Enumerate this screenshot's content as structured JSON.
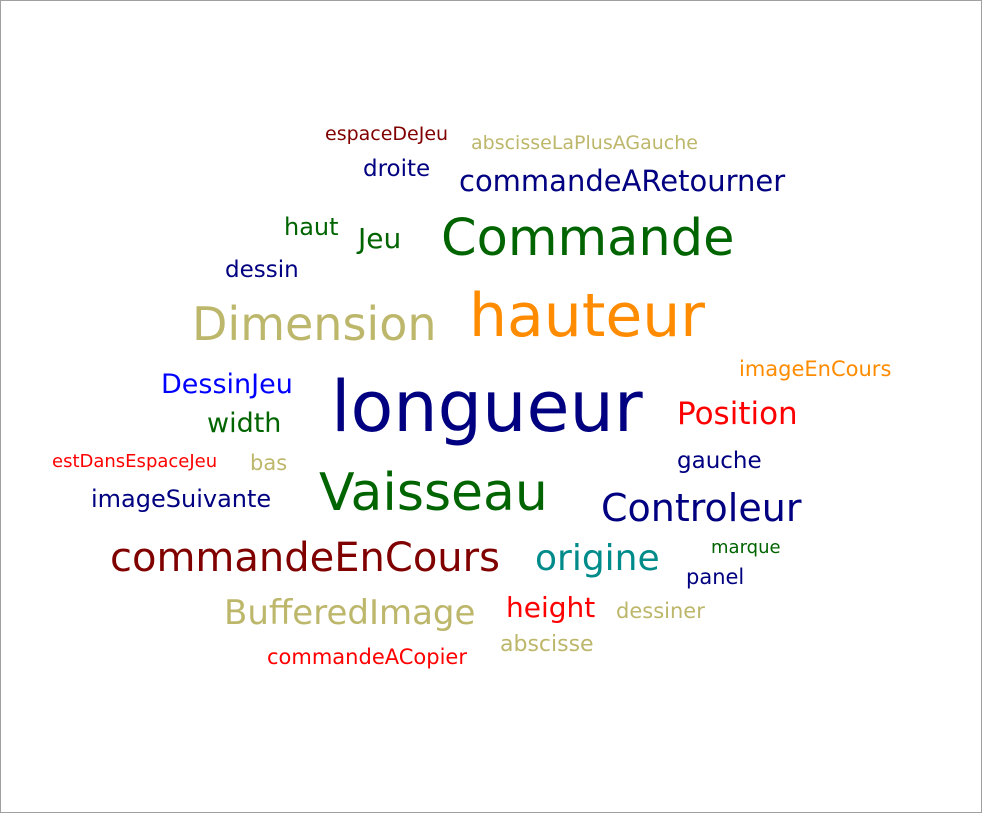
{
  "words": [
    {
      "text": "espaceDeJeu",
      "color": "#800000"
    },
    {
      "text": "abscisseLaPlusAGauche",
      "color": "#bdb76b"
    },
    {
      "text": "droite",
      "color": "#000080"
    },
    {
      "text": "commandeARetourner",
      "color": "#000080"
    },
    {
      "text": "haut",
      "color": "#006400"
    },
    {
      "text": "Jeu",
      "color": "#006400"
    },
    {
      "text": "Commande",
      "color": "#006400"
    },
    {
      "text": "dessin",
      "color": "#000080"
    },
    {
      "text": "Dimension",
      "color": "#bdb76b"
    },
    {
      "text": "hauteur",
      "color": "#ff8c00"
    },
    {
      "text": "imageEnCours",
      "color": "#ff8c00"
    },
    {
      "text": "DessinJeu",
      "color": "#0000ff"
    },
    {
      "text": "longueur",
      "color": "#000080"
    },
    {
      "text": "Position",
      "color": "#ff0000"
    },
    {
      "text": "width",
      "color": "#006400"
    },
    {
      "text": "estDansEspaceJeu",
      "color": "#ff0000"
    },
    {
      "text": "bas",
      "color": "#bdb76b"
    },
    {
      "text": "gauche",
      "color": "#000080"
    },
    {
      "text": "Vaisseau",
      "color": "#006400"
    },
    {
      "text": "imageSuivante",
      "color": "#000080"
    },
    {
      "text": "Controleur",
      "color": "#000080"
    },
    {
      "text": "marque",
      "color": "#006400"
    },
    {
      "text": "commandeEnCours",
      "color": "#800000"
    },
    {
      "text": "origine",
      "color": "#008b8b"
    },
    {
      "text": "panel",
      "color": "#000080"
    },
    {
      "text": "BufferedImage",
      "color": "#bdb76b"
    },
    {
      "text": "height",
      "color": "#ff0000"
    },
    {
      "text": "dessiner",
      "color": "#bdb76b"
    },
    {
      "text": "abscisse",
      "color": "#bdb76b"
    },
    {
      "text": "commandeACopier",
      "color": "#ff0000"
    }
  ]
}
